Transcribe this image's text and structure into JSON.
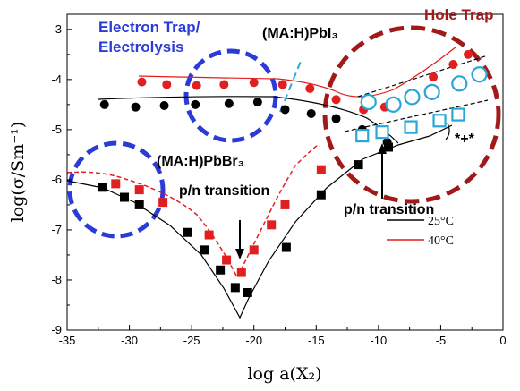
{
  "chart_data": {
    "type": "scatter",
    "xlabel": "log a(X₂)",
    "ylabel": "log(σ/Sm⁻¹)",
    "xlim": [
      -35,
      0
    ],
    "ylim": [
      -9,
      -2.7
    ],
    "x_ticks": [
      "-35",
      "-30",
      "-25",
      "-20",
      "-15",
      "-10",
      "-5",
      "0"
    ],
    "y_ticks": [
      "-9",
      "-8",
      "-7",
      "-6",
      "-5",
      "-4",
      "-3"
    ],
    "series": [
      {
        "name": "25°C",
        "group": "(MA:H)PbBr₃",
        "color": "#000000",
        "marker": "square",
        "points": [
          [
            -32.2,
            -6.15
          ],
          [
            -30.4,
            -6.35
          ],
          [
            -29.2,
            -6.5
          ],
          [
            -25.3,
            -7.05
          ],
          [
            -24.0,
            -7.4
          ],
          [
            -22.7,
            -7.8
          ],
          [
            -21.5,
            -8.15
          ],
          [
            -20.5,
            -8.25
          ],
          [
            -17.4,
            -7.35
          ],
          [
            -14.6,
            -6.3
          ],
          [
            -11.6,
            -5.7
          ],
          [
            -9.2,
            -5.35
          ]
        ]
      },
      {
        "name": "40°C",
        "group": "(MA:H)PbBr₃",
        "color": "#e02020",
        "marker": "square",
        "points": [
          [
            -31.1,
            -6.08
          ],
          [
            -29.2,
            -6.2
          ],
          [
            -27.3,
            -6.45
          ],
          [
            -23.6,
            -7.1
          ],
          [
            -22.2,
            -7.6
          ],
          [
            -21.0,
            -7.85
          ],
          [
            -20.0,
            -7.4
          ],
          [
            -18.6,
            -6.9
          ],
          [
            -17.5,
            -6.5
          ],
          [
            -14.6,
            -5.8
          ]
        ]
      },
      {
        "group": "(MA:H)PbI₃",
        "color": "#000000",
        "marker": "circle",
        "points": [
          [
            -32.0,
            -4.5
          ],
          [
            -29.5,
            -4.55
          ],
          [
            -27.2,
            -4.52
          ],
          [
            -24.7,
            -4.5
          ],
          [
            -22.0,
            -4.48
          ],
          [
            -19.7,
            -4.45
          ],
          [
            -17.5,
            -4.6
          ],
          [
            -15.4,
            -4.68
          ],
          [
            -13.4,
            -4.78
          ],
          [
            -11.3,
            -5.0
          ],
          [
            -9.3,
            -5.25
          ]
        ]
      },
      {
        "group": "(MA:H)PbI₃",
        "color": "#e02020",
        "marker": "circle",
        "points": [
          [
            -29.0,
            -4.05
          ],
          [
            -27.0,
            -4.1
          ],
          [
            -24.6,
            -4.12
          ],
          [
            -22.4,
            -4.1
          ],
          [
            -20.0,
            -4.06
          ],
          [
            -17.7,
            -4.1
          ],
          [
            -15.5,
            -4.18
          ],
          [
            -13.4,
            -4.4
          ],
          [
            -11.2,
            -4.6
          ],
          [
            -9.5,
            -4.55
          ],
          [
            -7.3,
            -4.3
          ],
          [
            -5.6,
            -3.95
          ],
          [
            -4.0,
            -3.7
          ],
          [
            -2.8,
            -3.5
          ]
        ]
      },
      {
        "group": "(MA:H)PbI₃",
        "color": "#29a6d9",
        "marker": "open-circle",
        "points": [
          [
            -10.8,
            -4.45
          ],
          [
            -8.8,
            -4.5
          ],
          [
            -7.3,
            -4.35
          ],
          [
            -5.7,
            -4.25
          ],
          [
            -3.5,
            -4.08
          ],
          [
            -1.9,
            -3.9
          ]
        ]
      },
      {
        "group": "(MA:H)PbBr₃",
        "color": "#29a6d9",
        "marker": "open-square",
        "points": [
          [
            -11.3,
            -5.12
          ],
          [
            -9.7,
            -5.05
          ],
          [
            -7.4,
            -4.95
          ],
          [
            -5.1,
            -4.82
          ],
          [
            -3.6,
            -4.7
          ]
        ]
      }
    ],
    "legend": {
      "placement": "lower-right",
      "entries": [
        {
          "label": "25°C",
          "color": "#000000"
        },
        {
          "label": "40°C",
          "color": "#e02020"
        }
      ]
    },
    "annotations": {
      "electron_trap": [
        "Electron Trap/",
        "Electrolysis"
      ],
      "hole_trap": "Hole Trap",
      "mapbi3": "(MA:H)PbI₃",
      "mapbbr3": "(MA:H)PbBr₃",
      "pn_left": "p/n transition",
      "pn_right": "p/n transition",
      "stars": "*+*"
    },
    "grid": false
  }
}
